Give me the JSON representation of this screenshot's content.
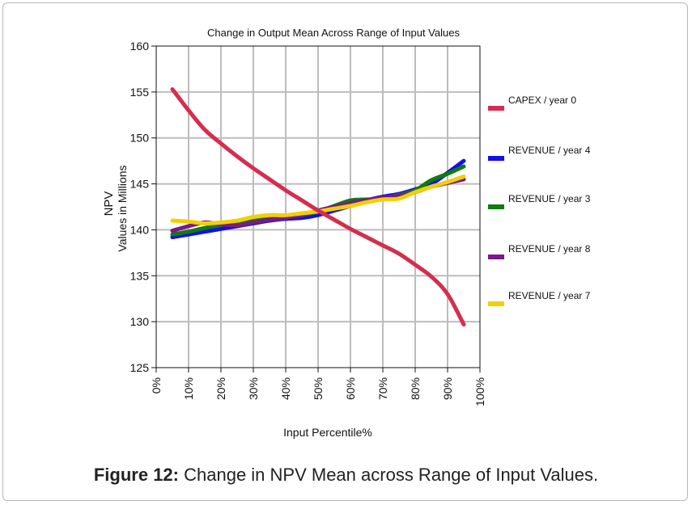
{
  "chart_data": {
    "type": "line",
    "title": "Change in Output Mean Across Range of Input Values",
    "xlabel": "Input Percentile%",
    "ylabel_line1": "NPV",
    "ylabel_line2": "Values in Millions",
    "xlim": [
      0,
      100
    ],
    "ylim": [
      125,
      160
    ],
    "x_ticks": [
      0,
      10,
      20,
      30,
      40,
      50,
      60,
      70,
      80,
      90,
      100
    ],
    "x_tick_labels": [
      "0%",
      "10%",
      "20%",
      "30%",
      "40%",
      "50%",
      "60%",
      "70%",
      "80%",
      "90%",
      "100%"
    ],
    "y_ticks": [
      125,
      130,
      135,
      140,
      145,
      150,
      155,
      160
    ],
    "y_tick_labels": [
      "125",
      "130",
      "135",
      "140",
      "145",
      "150",
      "155",
      "160"
    ],
    "grid": true,
    "legend_position": "right",
    "x": [
      5,
      10,
      15,
      20,
      25,
      30,
      35,
      40,
      45,
      50,
      55,
      60,
      65,
      70,
      75,
      80,
      85,
      90,
      95
    ],
    "series": [
      {
        "name": "CAPEX / year 0",
        "color": "#d42e4e",
        "values": [
          155.3,
          153.0,
          150.9,
          149.4,
          148.0,
          146.7,
          145.5,
          144.3,
          143.2,
          142.1,
          141.1,
          140.1,
          139.2,
          138.3,
          137.4,
          136.2,
          134.9,
          133.0,
          129.7
        ]
      },
      {
        "name": "REVENUE / year 4",
        "color": "#1010e8",
        "values": [
          139.2,
          139.5,
          139.8,
          140.1,
          140.4,
          140.7,
          141.0,
          141.2,
          141.3,
          141.6,
          142.1,
          142.6,
          143.2,
          143.6,
          143.9,
          144.4,
          145.0,
          146.2,
          147.5
        ]
      },
      {
        "name": "REVENUE /  year 3",
        "color": "#117a11",
        "values": [
          139.5,
          139.8,
          140.2,
          140.5,
          140.8,
          141.0,
          141.2,
          141.4,
          141.6,
          142.0,
          142.6,
          143.2,
          143.3,
          143.4,
          143.8,
          144.3,
          145.4,
          146.1,
          146.9
        ]
      },
      {
        "name": "REVENUE / year 8",
        "color": "#7a1a88",
        "values": [
          139.9,
          140.4,
          140.8,
          140.6,
          140.5,
          140.8,
          141.1,
          141.3,
          141.6,
          142.1,
          142.5,
          142.9,
          143.2,
          143.5,
          143.7,
          144.1,
          144.7,
          145.1,
          145.5
        ]
      },
      {
        "name": "REVENUE / year 7",
        "color": "#f2d000",
        "values": [
          141.0,
          140.9,
          140.7,
          140.8,
          141.0,
          141.4,
          141.6,
          141.6,
          141.8,
          142.0,
          142.3,
          142.6,
          143.0,
          143.3,
          143.4,
          144.1,
          144.7,
          145.2,
          145.8
        ]
      }
    ]
  },
  "caption": {
    "label": "Figure 12:",
    "text": " Change in NPV Mean across Range of Input Values."
  }
}
